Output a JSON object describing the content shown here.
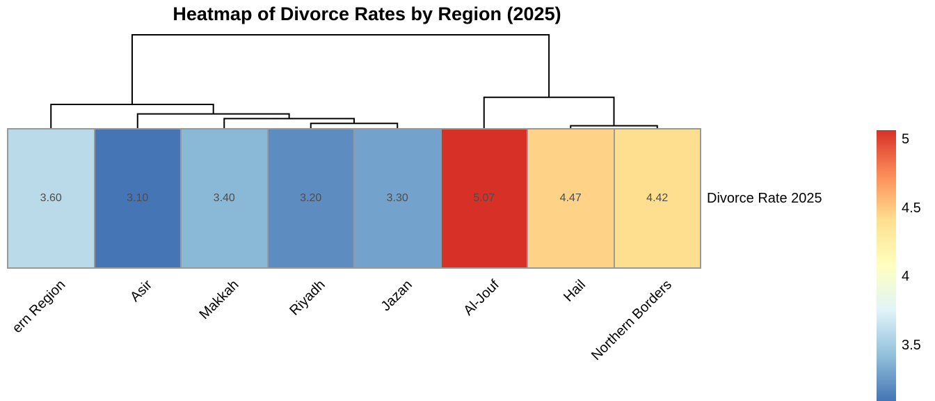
{
  "figure": {
    "title": "Heatmap of Divorce Rates by Region (2025)"
  },
  "chart_data": {
    "type": "heatmap",
    "title": "Heatmap of Divorce Rates by Region (2025)",
    "row_labels": [
      "Divorce Rate 2025"
    ],
    "columns": [
      {
        "label": "ern Region",
        "value": 3.6,
        "display": "3.60",
        "color": "#bad9e9"
      },
      {
        "label": "Asir",
        "value": 3.1,
        "display": "3.10",
        "color": "#4575b4"
      },
      {
        "label": "Makkah",
        "value": 3.4,
        "display": "3.40",
        "color": "#8ab9d8"
      },
      {
        "label": "Riyadh",
        "value": 3.2,
        "display": "3.20",
        "color": "#5c8cc0"
      },
      {
        "label": "Jazan",
        "value": 3.3,
        "display": "3.30",
        "color": "#73a2cc"
      },
      {
        "label": "Al-Jouf",
        "value": 5.07,
        "display": "5.07",
        "color": "#d73027"
      },
      {
        "label": "Hail",
        "value": 4.47,
        "display": "4.47",
        "color": "#fed287"
      },
      {
        "label": "Northern Borders",
        "value": 4.42,
        "display": "4.42",
        "color": "#fede8f"
      }
    ],
    "color_scale": {
      "min": 3.1,
      "max": 5.07,
      "palette_low_to_high": [
        "#4575b4",
        "#91bfdb",
        "#e0f3f8",
        "#ffffbf",
        "#fee090",
        "#fc8d59",
        "#d73027"
      ]
    },
    "legend_ticks": [
      {
        "label": "5",
        "value": 5.0
      },
      {
        "label": "4.5",
        "value": 4.5
      },
      {
        "label": "4",
        "value": 4.0
      },
      {
        "label": "3.5",
        "value": 3.5
      }
    ],
    "dendrogram": {
      "max_height": 1.97,
      "merges": [
        {
          "id": "m1",
          "a": "leaf6",
          "b": "leaf7",
          "height": 0.05
        },
        {
          "id": "m2",
          "a": "leaf3",
          "b": "leaf4",
          "height": 0.1
        },
        {
          "id": "m3",
          "a": "leaf2",
          "b": "m2",
          "height": 0.2
        },
        {
          "id": "m4",
          "a": "leaf1",
          "b": "m3",
          "height": 0.3
        },
        {
          "id": "m5",
          "a": "leaf0",
          "b": "m4",
          "height": 0.5
        },
        {
          "id": "m6",
          "a": "leaf5",
          "b": "m1",
          "height": 0.65
        },
        {
          "id": "m7",
          "a": "m5",
          "b": "m6",
          "height": 1.97
        }
      ]
    },
    "colors": {
      "cell_border": "#999999",
      "cell_number_text": "#4d4d4d",
      "dendrogram_line": "#000000",
      "label_text": "#000000"
    }
  }
}
